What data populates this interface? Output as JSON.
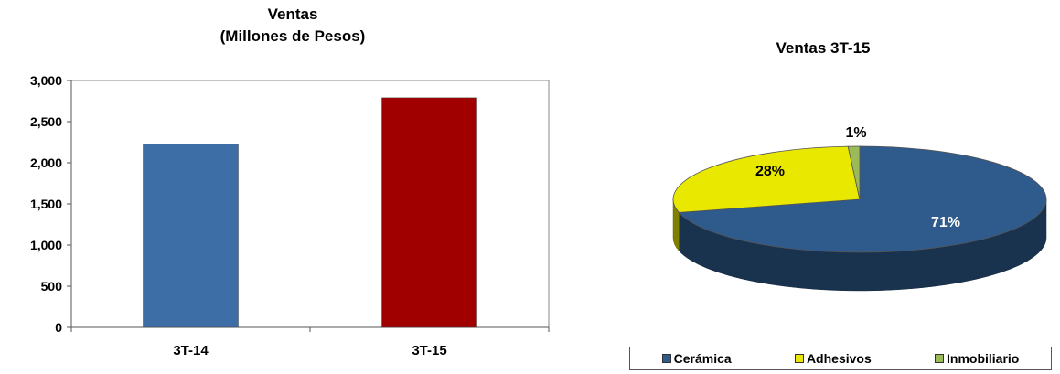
{
  "chart_data": [
    {
      "type": "bar",
      "title": "Ventas",
      "subtitle": "(Millones de Pesos)",
      "categories": [
        "3T-14",
        "3T-15"
      ],
      "values": [
        2230,
        2790
      ],
      "colors": [
        "#3E6EA6",
        "#A00000"
      ],
      "ylim": [
        0,
        3000
      ],
      "yticks": [
        0,
        500,
        1000,
        1500,
        2000,
        2500,
        3000
      ],
      "ytick_labels": [
        "0",
        "500",
        "1,000",
        "1,500",
        "2,000",
        "2,500",
        "3,000"
      ],
      "grid": false
    },
    {
      "type": "pie",
      "title": "Ventas 3T-15",
      "slices": [
        {
          "label": "Cerámica",
          "value": 71,
          "display": "71%",
          "color": "#2E5A8C"
        },
        {
          "label": "Adhesivos",
          "value": 28,
          "display": "28%",
          "color": "#E8E800"
        },
        {
          "label": "Inmobiliario",
          "value": 1,
          "display": "1%",
          "color": "#9BBB59"
        }
      ],
      "legend_position": "bottom"
    }
  ]
}
